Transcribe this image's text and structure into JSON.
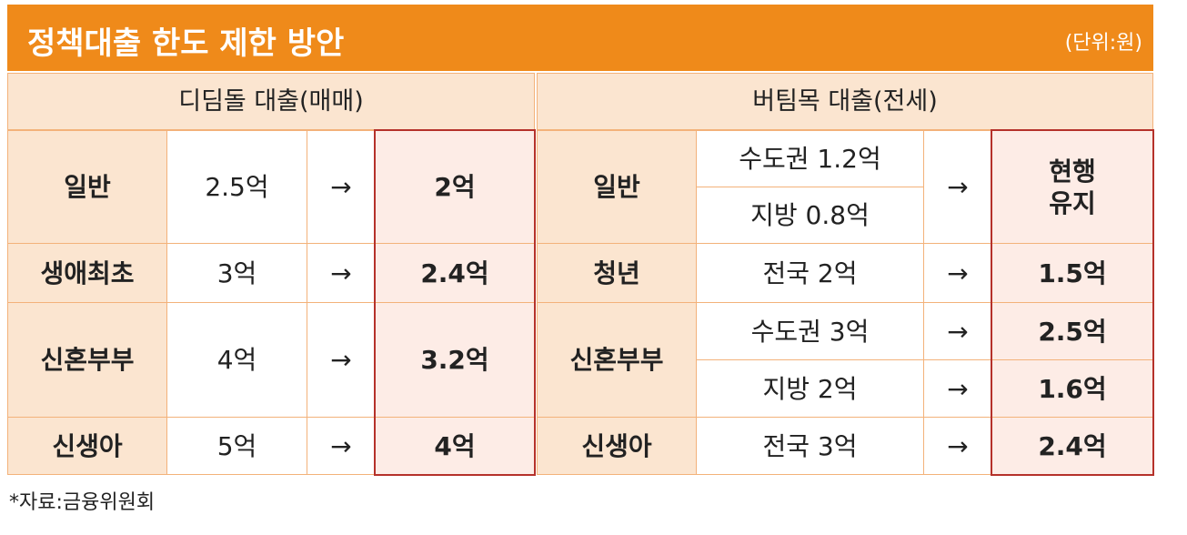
{
  "header": {
    "title": "정책대출 한도 제한 방안",
    "unit": "(단위:원)"
  },
  "table": {
    "columns": [
      "디딤돌 대출(매매)",
      "버팀목 대출(전세)"
    ],
    "left_rows": [
      {
        "label": "일반",
        "current": "2.5억",
        "arrow": "→",
        "new": "2억"
      },
      {
        "label": "생애최초",
        "current": "3억",
        "arrow": "→",
        "new": "2.4억"
      },
      {
        "label": "신혼부부",
        "current": "4억",
        "arrow": "→",
        "new": "3.2억"
      },
      {
        "label": "신생아",
        "current": "5억",
        "arrow": "→",
        "new": "4억"
      }
    ],
    "right_rows": [
      {
        "label": "일반",
        "sub": [
          {
            "current": "수도권 1.2억"
          },
          {
            "current": "지방 0.8억"
          }
        ],
        "arrow": "→",
        "new": "현행\n유지"
      },
      {
        "label": "청년",
        "sub": [
          {
            "current": "전국 2억",
            "arrow": "→",
            "new": "1.5억"
          }
        ]
      },
      {
        "label": "신혼부부",
        "sub": [
          {
            "current": "수도권 3억",
            "arrow": "→",
            "new": "2.5억"
          },
          {
            "current": "지방 2억",
            "arrow": "→",
            "new": "1.6억"
          }
        ]
      },
      {
        "label": "신생아",
        "sub": [
          {
            "current": "전국 3억",
            "arrow": "→",
            "new": "2.4억"
          }
        ]
      }
    ]
  },
  "source": "*자료:금융위원회"
}
